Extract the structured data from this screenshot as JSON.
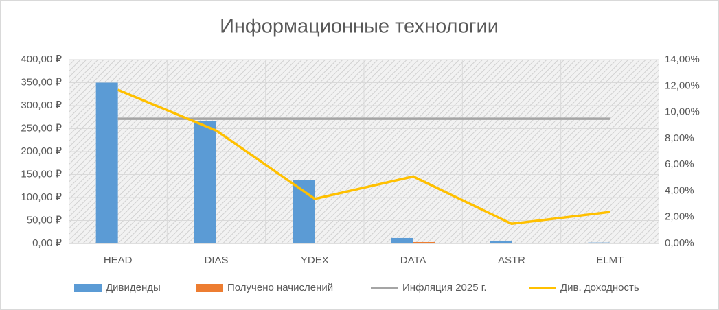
{
  "chart_data": {
    "type": "bar",
    "title": "Информационные технологии",
    "categories": [
      "HEAD",
      "DIAS",
      "YDEX",
      "DATA",
      "ASTR",
      "ELMT"
    ],
    "series": [
      {
        "name": "Дивиденды",
        "type": "bar",
        "color": "#5b9bd5",
        "values": [
          350,
          267,
          138,
          12,
          6,
          2
        ]
      },
      {
        "name": "Получено начислений",
        "type": "bar",
        "color": "#ed7d31",
        "values": [
          0,
          0,
          0,
          3,
          0,
          0
        ]
      },
      {
        "name": "Инфляция 2025 г.",
        "type": "line",
        "axis": "y2",
        "color": "#a5a5a5",
        "values": [
          9.5,
          9.5,
          9.5,
          9.5,
          9.5,
          9.5
        ]
      },
      {
        "name": "Див. доходность",
        "type": "line",
        "axis": "y2",
        "color": "#ffc000",
        "values": [
          11.7,
          8.6,
          3.4,
          5.1,
          1.5,
          2.4
        ]
      }
    ],
    "ylim": [
      0,
      400
    ],
    "yticks": [
      {
        "value": 0,
        "label": "0,00 ₽"
      },
      {
        "value": 50,
        "label": "50,00 ₽"
      },
      {
        "value": 100,
        "label": "100,00 ₽"
      },
      {
        "value": 150,
        "label": "150,00 ₽"
      },
      {
        "value": 200,
        "label": "200,00 ₽"
      },
      {
        "value": 250,
        "label": "250,00 ₽"
      },
      {
        "value": 300,
        "label": "300,00 ₽"
      },
      {
        "value": 350,
        "label": "350,00 ₽"
      },
      {
        "value": 400,
        "label": "400,00 ₽"
      }
    ],
    "y2lim": [
      0,
      14
    ],
    "y2ticks": [
      {
        "value": 0,
        "label": "0,00%"
      },
      {
        "value": 2,
        "label": "2,00%"
      },
      {
        "value": 4,
        "label": "4,00%"
      },
      {
        "value": 6,
        "label": "6,00%"
      },
      {
        "value": 8,
        "label": "8,00%"
      },
      {
        "value": 10,
        "label": "10,00%"
      },
      {
        "value": 12,
        "label": "12,00%"
      },
      {
        "value": 14,
        "label": "14,00%"
      }
    ],
    "grid": true,
    "legend": "bottom"
  }
}
